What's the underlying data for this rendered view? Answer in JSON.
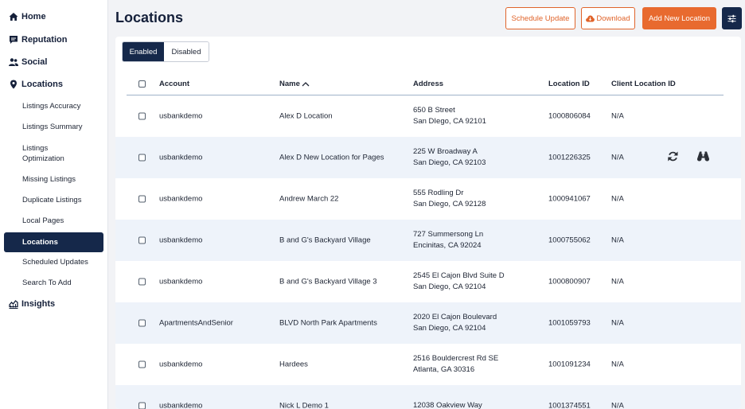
{
  "sidebar": {
    "sections": [
      {
        "label": "Home",
        "icon": "home-icon"
      },
      {
        "label": "Reputation",
        "icon": "comment-icon"
      },
      {
        "label": "Social",
        "icon": "users-icon"
      },
      {
        "label": "Locations",
        "icon": "map-pin-icon"
      },
      {
        "label": "Insights",
        "icon": "chart-line-icon"
      }
    ],
    "items": [
      {
        "label": "Listings Accuracy"
      },
      {
        "label": "Listings Summary"
      },
      {
        "label": "Listings Optimization"
      },
      {
        "label": "Missing Listings"
      },
      {
        "label": "Duplicate Listings"
      },
      {
        "label": "Local Pages"
      },
      {
        "label": "Locations",
        "active": true
      },
      {
        "label": "Scheduled Updates"
      },
      {
        "label": "Search To Add"
      }
    ]
  },
  "header": {
    "title": "Locations",
    "schedule_update": "Schedule Update",
    "download": "Download",
    "add_new": "Add New Location"
  },
  "toggle": {
    "enabled": "Enabled",
    "disabled": "Disabled"
  },
  "table": {
    "columns": {
      "account": "Account",
      "name": "Name",
      "address": "Address",
      "location_id": "Location ID",
      "client_location_id": "Client Location ID"
    },
    "rows": [
      {
        "account": "usbankdemo",
        "name": "Alex D Location",
        "address1": "650 B Street",
        "address2": "San DIego, CA 92101",
        "location_id": "1000806084",
        "client_location_id": "N/A"
      },
      {
        "account": "usbankdemo",
        "name": "Alex D New Location for Pages",
        "address1": "225 W Broadway A",
        "address2": "San Diego, CA 92103",
        "location_id": "1001226325",
        "client_location_id": "N/A"
      },
      {
        "account": "usbankdemo",
        "name": "Andrew March 22",
        "address1": "555 Rodling Dr",
        "address2": "San Diego, CA 92128",
        "location_id": "1000941067",
        "client_location_id": "N/A"
      },
      {
        "account": "usbankdemo",
        "name": "B and G's Backyard Village",
        "address1": "727 Summersong Ln",
        "address2": "Encinitas, CA 92024",
        "location_id": "1000755062",
        "client_location_id": "N/A"
      },
      {
        "account": "usbankdemo",
        "name": "B and G's Backyard Village 3",
        "address1": "2545 El Cajon Blvd Suite D",
        "address2": "San Diego, CA 92104",
        "location_id": "1000800907",
        "client_location_id": "N/A"
      },
      {
        "account": "ApartmentsAndSenior",
        "name": "BLVD North Park Apartments",
        "address1": "2020 El Cajon Boulevard",
        "address2": "San Diego, CA 92104",
        "location_id": "1001059793",
        "client_location_id": "N/A"
      },
      {
        "account": "usbankdemo",
        "name": "Hardees",
        "address1": "2516 Bouldercrest Rd SE",
        "address2": "Atlanta, GA 30316",
        "location_id": "1001091234",
        "client_location_id": "N/A"
      },
      {
        "account": "usbankdemo",
        "name": "Nick L Demo 1",
        "address1": "12038 Oakview Way",
        "address2": "",
        "location_id": "1001374551",
        "client_location_id": "N/A"
      }
    ]
  },
  "colors": {
    "accent": "#e86a2f",
    "navy": "#15284a",
    "row_highlight": "#eef3fa"
  }
}
